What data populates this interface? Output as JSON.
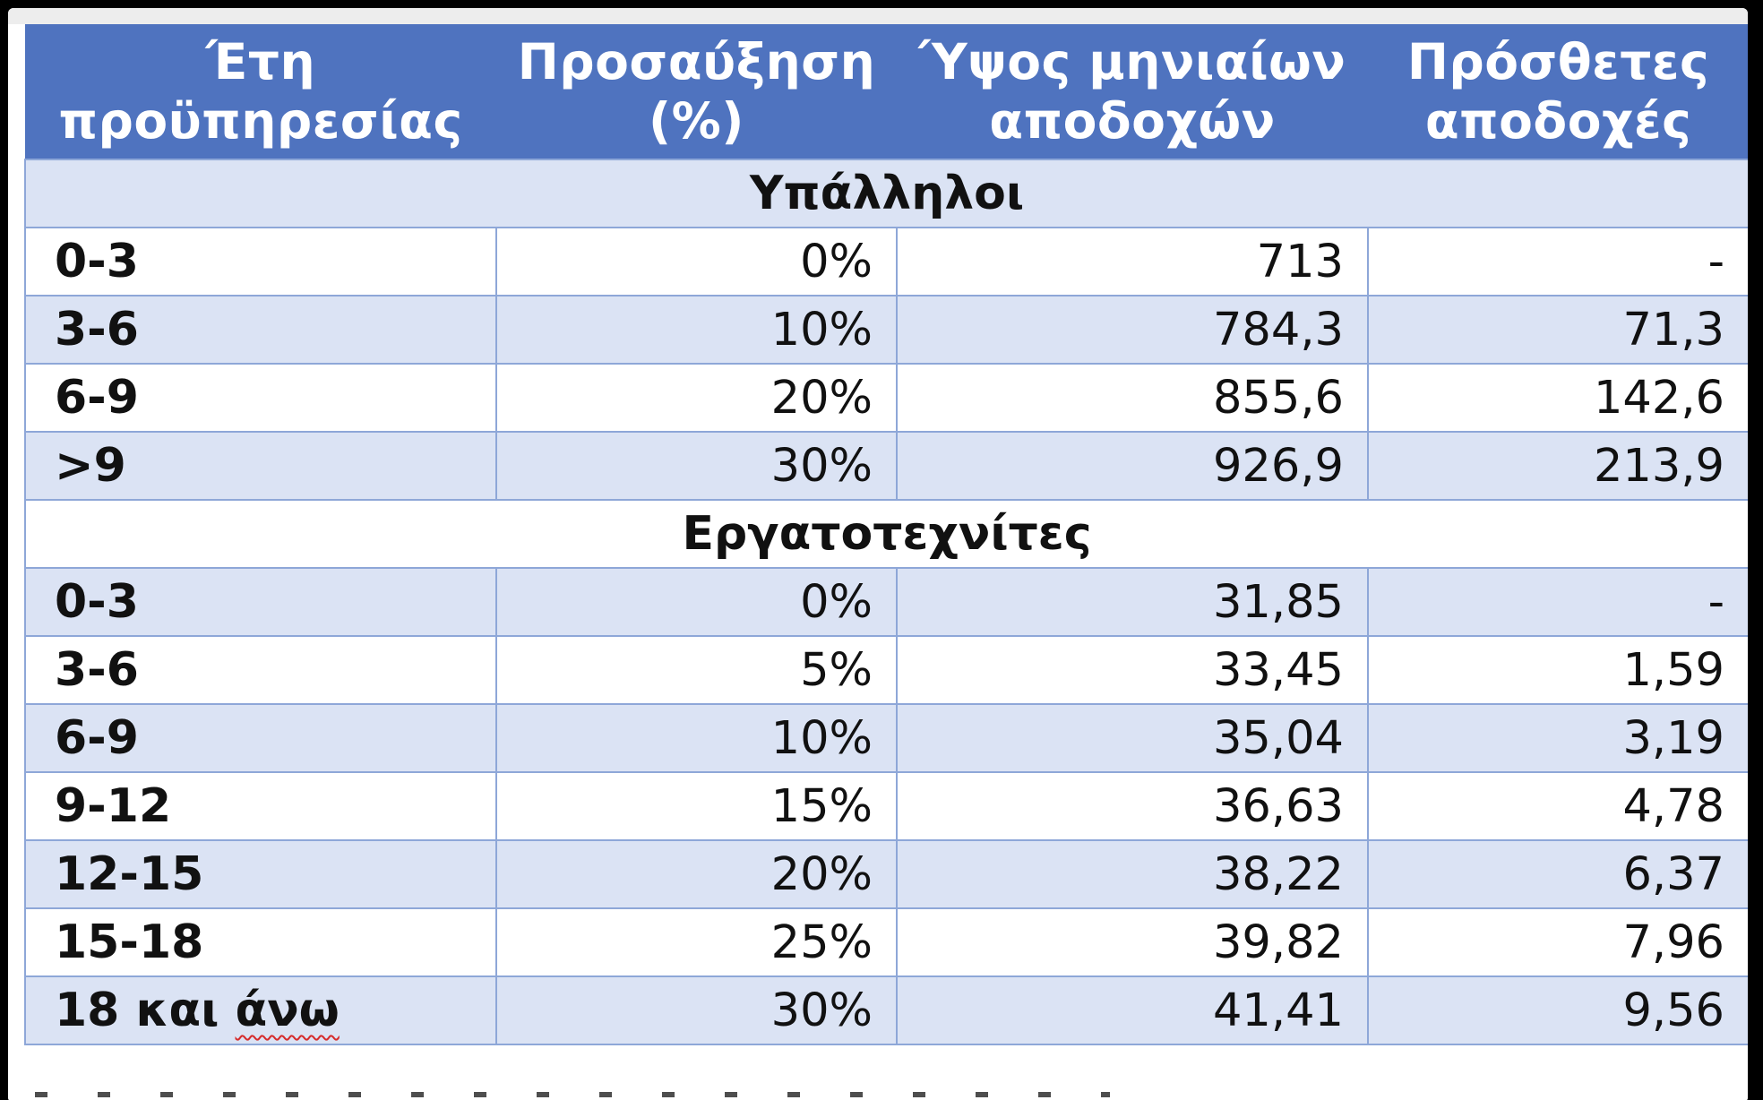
{
  "table": {
    "headers": [
      {
        "line1": "Έτη",
        "line2": "προϋπηρεσίας"
      },
      {
        "line1": "Προσαύξηση",
        "line2": "(%)"
      },
      {
        "line1": "Ύψος μηνιαίων",
        "line2": "αποδοχών"
      },
      {
        "line1": "Πρόσθετες",
        "line2": "αποδοχές"
      }
    ],
    "sections": [
      {
        "title": "Υπάλληλοι",
        "rows": [
          {
            "years": "0-3",
            "increase": "0%",
            "amount": "713",
            "extra": "-"
          },
          {
            "years": "3-6",
            "increase": "10%",
            "amount": "784,3",
            "extra": "71,3"
          },
          {
            "years": "6-9",
            "increase": "20%",
            "amount": "855,6",
            "extra": "142,6"
          },
          {
            "years": ">9",
            "increase": "30%",
            "amount": "926,9",
            "extra": "213,9"
          }
        ]
      },
      {
        "title": "Εργατοτεχνίτες",
        "rows": [
          {
            "years": "0-3",
            "increase": "0%",
            "amount": "31,85",
            "extra": "-"
          },
          {
            "years": "3-6",
            "increase": "5%",
            "amount": "33,45",
            "extra": "1,59"
          },
          {
            "years": "6-9",
            "increase": "10%",
            "amount": "35,04",
            "extra": "3,19"
          },
          {
            "years": "9-12",
            "increase": "15%",
            "amount": "36,63",
            "extra": "4,78"
          },
          {
            "years": "12-15",
            "increase": "20%",
            "amount": "38,22",
            "extra": "6,37"
          },
          {
            "years": "15-18",
            "increase": "25%",
            "amount": "39,82",
            "extra": "7,96"
          },
          {
            "years_prefix": "18 και",
            "years_word": "άνω",
            "increase": "30%",
            "amount": "41,41",
            "extra": "9,56"
          }
        ]
      }
    ]
  },
  "colors": {
    "header_bg": "#4f73bf",
    "band_bg": "#dbe3f4",
    "grid": "#8ea7d8",
    "spellcheck": "#d62b2b"
  }
}
